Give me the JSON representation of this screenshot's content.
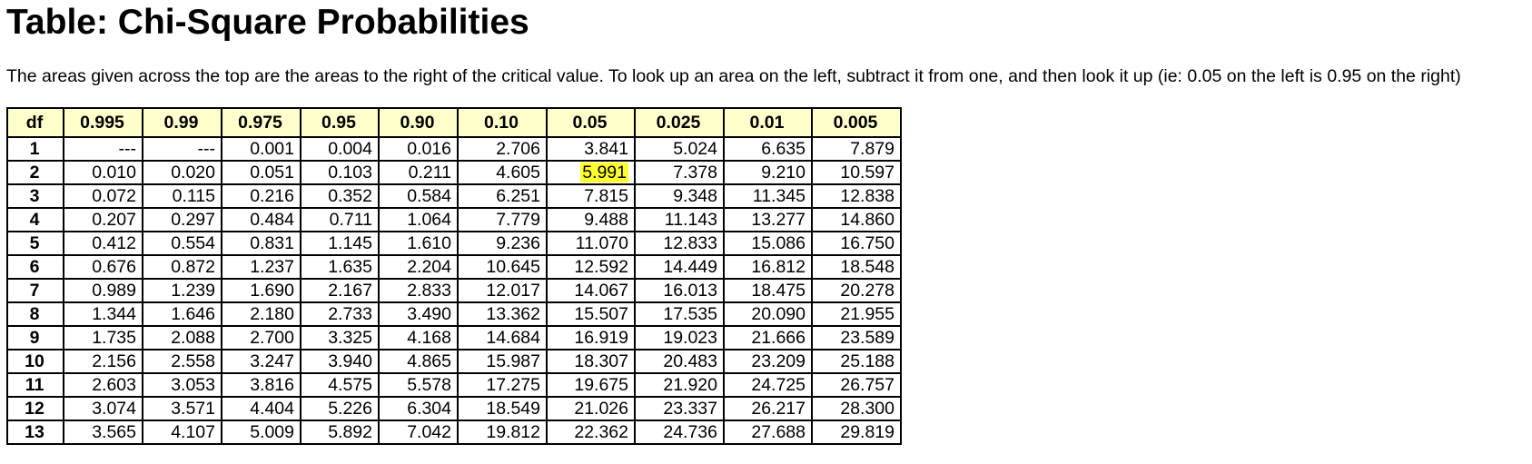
{
  "title": "Table: Chi-Square Probabilities",
  "intro": "The areas given across the top are the areas to the right of the critical value. To look up an area on the left, subtract it from one, and then look it up (ie: 0.05 on the left is 0.95 on the right)",
  "header_bg": "#ffffcc",
  "highlight_color": "#ffff2e",
  "table": {
    "headers": [
      "df",
      "0.995",
      "0.99",
      "0.975",
      "0.95",
      "0.90",
      "0.10",
      "0.05",
      "0.025",
      "0.01",
      "0.005"
    ],
    "rows": [
      [
        "1",
        "---",
        "---",
        "0.001",
        "0.004",
        "0.016",
        "2.706",
        "3.841",
        "5.024",
        "6.635",
        "7.879"
      ],
      [
        "2",
        "0.010",
        "0.020",
        "0.051",
        "0.103",
        "0.211",
        "4.605",
        "5.991",
        "7.378",
        "9.210",
        "10.597"
      ],
      [
        "3",
        "0.072",
        "0.115",
        "0.216",
        "0.352",
        "0.584",
        "6.251",
        "7.815",
        "9.348",
        "11.345",
        "12.838"
      ],
      [
        "4",
        "0.207",
        "0.297",
        "0.484",
        "0.711",
        "1.064",
        "7.779",
        "9.488",
        "11.143",
        "13.277",
        "14.860"
      ],
      [
        "5",
        "0.412",
        "0.554",
        "0.831",
        "1.145",
        "1.610",
        "9.236",
        "11.070",
        "12.833",
        "15.086",
        "16.750"
      ],
      [
        "6",
        "0.676",
        "0.872",
        "1.237",
        "1.635",
        "2.204",
        "10.645",
        "12.592",
        "14.449",
        "16.812",
        "18.548"
      ],
      [
        "7",
        "0.989",
        "1.239",
        "1.690",
        "2.167",
        "2.833",
        "12.017",
        "14.067",
        "16.013",
        "18.475",
        "20.278"
      ],
      [
        "8",
        "1.344",
        "1.646",
        "2.180",
        "2.733",
        "3.490",
        "13.362",
        "15.507",
        "17.535",
        "20.090",
        "21.955"
      ],
      [
        "9",
        "1.735",
        "2.088",
        "2.700",
        "3.325",
        "4.168",
        "14.684",
        "16.919",
        "19.023",
        "21.666",
        "23.589"
      ],
      [
        "10",
        "2.156",
        "2.558",
        "3.247",
        "3.940",
        "4.865",
        "15.987",
        "18.307",
        "20.483",
        "23.209",
        "25.188"
      ],
      [
        "11",
        "2.603",
        "3.053",
        "3.816",
        "4.575",
        "5.578",
        "17.275",
        "19.675",
        "21.920",
        "24.725",
        "26.757"
      ],
      [
        "12",
        "3.074",
        "3.571",
        "4.404",
        "5.226",
        "6.304",
        "18.549",
        "21.026",
        "23.337",
        "26.217",
        "28.300"
      ],
      [
        "13",
        "3.565",
        "4.107",
        "5.009",
        "5.892",
        "7.042",
        "19.812",
        "22.362",
        "24.736",
        "27.688",
        "29.819"
      ]
    ],
    "highlighted_cell": {
      "row": 1,
      "col": 7
    }
  }
}
